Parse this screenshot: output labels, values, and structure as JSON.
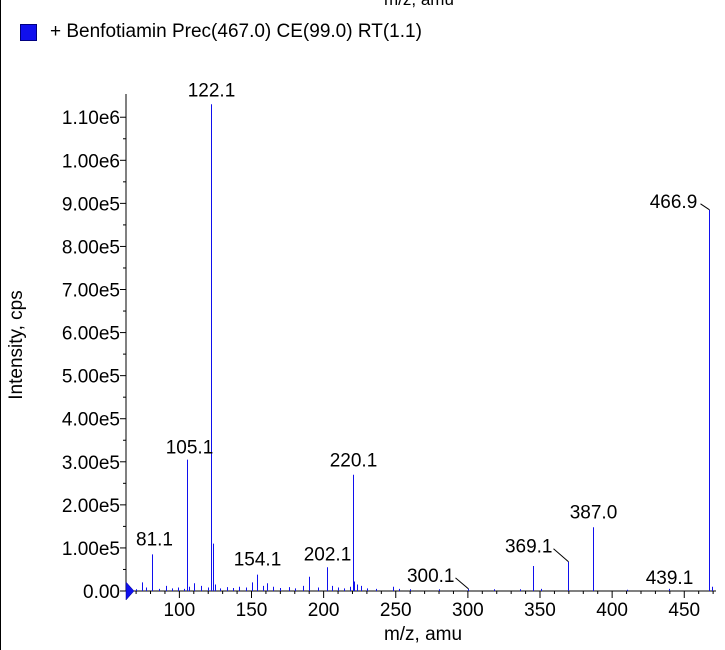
{
  "top_label": "m/z, amu",
  "legend": {
    "label": "+ Benfotiamin Prec(467.0) CE(99.0) RT(1.1)",
    "color": "#1010ee"
  },
  "chart_data": {
    "type": "bar",
    "title": "",
    "xlabel": "m/z, amu",
    "ylabel": "Intensity, cps",
    "xlim": [
      63,
      472
    ],
    "ylim": [
      0,
      1140000
    ],
    "x_ticks": [
      100,
      150,
      200,
      250,
      300,
      350,
      400,
      450
    ],
    "x_tick_labels": [
      "100",
      "150",
      "200",
      "250",
      "300",
      "350",
      "400",
      "450"
    ],
    "y_ticks": [
      0,
      100000,
      200000,
      300000,
      400000,
      500000,
      600000,
      700000,
      800000,
      900000,
      1000000,
      1100000
    ],
    "y_tick_labels": [
      "0.00",
      "1.00e5",
      "2.00e5",
      "3.00e5",
      "4.00e5",
      "5.00e5",
      "6.00e5",
      "7.00e5",
      "8.00e5",
      "9.00e5",
      "1.00e6",
      "1.10e6"
    ],
    "series_color": "#1010ee",
    "peaks": [
      {
        "x": 70.0,
        "y": 4000
      },
      {
        "x": 74.0,
        "y": 20000
      },
      {
        "x": 77.0,
        "y": 8000
      },
      {
        "x": 81.1,
        "y": 85000
      },
      {
        "x": 86.0,
        "y": 5000
      },
      {
        "x": 91.0,
        "y": 12000
      },
      {
        "x": 95.0,
        "y": 6000
      },
      {
        "x": 99.0,
        "y": 8000
      },
      {
        "x": 103.0,
        "y": 5000
      },
      {
        "x": 105.1,
        "y": 305000
      },
      {
        "x": 107.0,
        "y": 10000
      },
      {
        "x": 110.0,
        "y": 18000
      },
      {
        "x": 115.0,
        "y": 12000
      },
      {
        "x": 120.0,
        "y": 8000
      },
      {
        "x": 122.1,
        "y": 1130000
      },
      {
        "x": 123.0,
        "y": 110000
      },
      {
        "x": 125.0,
        "y": 15000
      },
      {
        "x": 128.0,
        "y": 6000
      },
      {
        "x": 133.0,
        "y": 9000
      },
      {
        "x": 137.0,
        "y": 7000
      },
      {
        "x": 141.0,
        "y": 10000
      },
      {
        "x": 146.0,
        "y": 8000
      },
      {
        "x": 150.0,
        "y": 20000
      },
      {
        "x": 154.1,
        "y": 38000
      },
      {
        "x": 158.0,
        "y": 12000
      },
      {
        "x": 161.0,
        "y": 18000
      },
      {
        "x": 165.0,
        "y": 10000
      },
      {
        "x": 170.0,
        "y": 7000
      },
      {
        "x": 176.0,
        "y": 9000
      },
      {
        "x": 180.0,
        "y": 6000
      },
      {
        "x": 186.0,
        "y": 12000
      },
      {
        "x": 190.0,
        "y": 33000
      },
      {
        "x": 196.0,
        "y": 8000
      },
      {
        "x": 202.1,
        "y": 55000
      },
      {
        "x": 206.0,
        "y": 12000
      },
      {
        "x": 210.0,
        "y": 8000
      },
      {
        "x": 214.0,
        "y": 6000
      },
      {
        "x": 218.0,
        "y": 10000
      },
      {
        "x": 220.1,
        "y": 270000
      },
      {
        "x": 221.0,
        "y": 22000
      },
      {
        "x": 223.0,
        "y": 15000
      },
      {
        "x": 226.0,
        "y": 12000
      },
      {
        "x": 230.0,
        "y": 6000
      },
      {
        "x": 236.0,
        "y": 5000
      },
      {
        "x": 248.0,
        "y": 10000
      },
      {
        "x": 252.0,
        "y": 5000
      },
      {
        "x": 260.0,
        "y": 4000
      },
      {
        "x": 280.0,
        "y": 4000
      },
      {
        "x": 300.1,
        "y": 5000
      },
      {
        "x": 318.0,
        "y": 4000
      },
      {
        "x": 336.0,
        "y": 4000
      },
      {
        "x": 345.0,
        "y": 58000
      },
      {
        "x": 351.0,
        "y": 5000
      },
      {
        "x": 369.1,
        "y": 68000
      },
      {
        "x": 387.0,
        "y": 148000
      },
      {
        "x": 410.0,
        "y": 3000
      },
      {
        "x": 439.1,
        "y": 5000
      },
      {
        "x": 466.9,
        "y": 885000
      },
      {
        "x": 469.0,
        "y": 10000
      }
    ],
    "peak_labels": [
      {
        "x": 81.1,
        "y": 85000,
        "text": "81.1"
      },
      {
        "x": 105.1,
        "y": 305000,
        "text": "105.1"
      },
      {
        "x": 122.1,
        "y": 1130000,
        "text": "122.1"
      },
      {
        "x": 154.1,
        "y": 38000,
        "text": "154.1"
      },
      {
        "x": 202.1,
        "y": 55000,
        "text": "202.1"
      },
      {
        "x": 220.1,
        "y": 270000,
        "text": "220.1"
      },
      {
        "x": 300.1,
        "y": 5000,
        "text": "300.1"
      },
      {
        "x": 369.1,
        "y": 68000,
        "text": "369.1"
      },
      {
        "x": 387.0,
        "y": 148000,
        "text": "387.0"
      },
      {
        "x": 439.1,
        "y": 5000,
        "text": "439.1"
      },
      {
        "x": 466.9,
        "y": 885000,
        "text": "466.9"
      }
    ]
  }
}
